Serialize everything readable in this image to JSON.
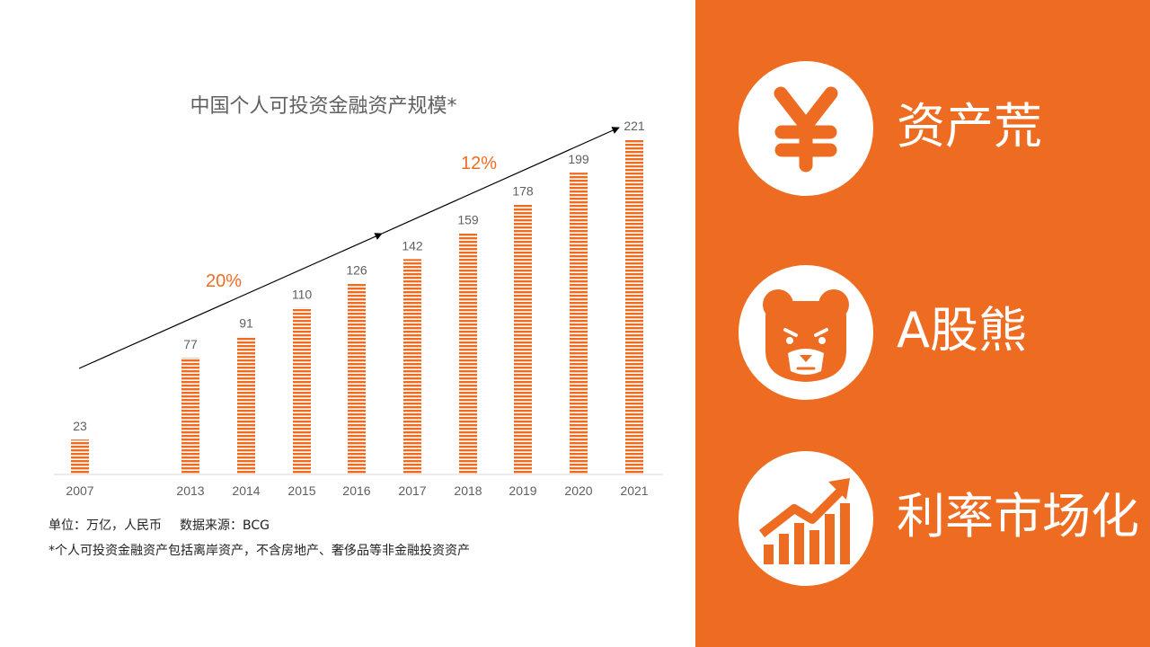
{
  "chart_data": {
    "type": "bar",
    "title": "中国个人可投资金融资产规模*",
    "categories": [
      "2007",
      "2013",
      "2014",
      "2015",
      "2016",
      "2017",
      "2018",
      "2019",
      "2020",
      "2021"
    ],
    "values": [
      23,
      77,
      91,
      110,
      126,
      142,
      159,
      178,
      199,
      221
    ],
    "ylim": [
      0,
      230
    ],
    "grid": false,
    "annotations": [
      {
        "text": "20%",
        "kind": "growth-rate"
      },
      {
        "text": "12%",
        "kind": "growth-rate"
      }
    ],
    "bar_color": "#ee6c22"
  },
  "notes": {
    "unit": "单位：万亿，人民币",
    "source": "数据来源：BCG",
    "footnote": "*个人可投资金融资产包括离岸资产，不含房地产、奢侈品等非金融投资资产"
  },
  "features": [
    {
      "label": "资产荒",
      "icon": "yen-icon"
    },
    {
      "label": "A股熊",
      "icon": "bear-icon"
    },
    {
      "label": "利率市场化",
      "icon": "rising-chart-icon"
    }
  ],
  "colors": {
    "accent": "#ee6c22",
    "text": "#5f5f5f"
  }
}
